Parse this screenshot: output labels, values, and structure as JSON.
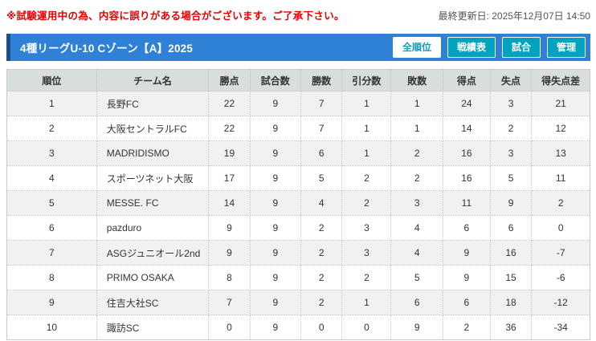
{
  "notice": {
    "text": "※試験運用中の為、内容に誤りがある場合がございます。ご了承下さい。",
    "color": "#e60000"
  },
  "updated": {
    "text": "最終更新日: 2025年12月07日 14:50"
  },
  "header": {
    "title": "4種リーグU-10 Cゾーン【A】2025",
    "bar_color": "#2e81d6",
    "bar_accent_color": "#1d4e8b",
    "button_color": "#00a2bd",
    "buttons": [
      {
        "label": "全順位",
        "active": true
      },
      {
        "label": "戦績表",
        "active": false
      },
      {
        "label": "試合",
        "active": false
      },
      {
        "label": "管理",
        "active": false
      }
    ]
  },
  "table": {
    "header_bg": "#d8dfda",
    "odd_row_bg": "#f1f1f1",
    "columns": [
      "順位",
      "チーム名",
      "勝点",
      "試合数",
      "勝数",
      "引分数",
      "敗数",
      "得点",
      "失点",
      "得失点差"
    ],
    "rows": [
      [
        "1",
        "長野FC",
        "22",
        "9",
        "7",
        "1",
        "1",
        "24",
        "3",
        "21"
      ],
      [
        "2",
        "大阪セントラルFC",
        "22",
        "9",
        "7",
        "1",
        "1",
        "14",
        "2",
        "12"
      ],
      [
        "3",
        "MADRIDISMO",
        "19",
        "9",
        "6",
        "1",
        "2",
        "16",
        "3",
        "13"
      ],
      [
        "4",
        "スポーツネット大阪",
        "17",
        "9",
        "5",
        "2",
        "2",
        "16",
        "5",
        "11"
      ],
      [
        "5",
        "MESSE. FC",
        "14",
        "9",
        "4",
        "2",
        "3",
        "11",
        "9",
        "2"
      ],
      [
        "6",
        "pazduro",
        "9",
        "9",
        "2",
        "3",
        "4",
        "6",
        "6",
        "0"
      ],
      [
        "7",
        "ASGジュニオール2nd",
        "9",
        "9",
        "2",
        "3",
        "4",
        "9",
        "16",
        "-7"
      ],
      [
        "8",
        "PRIMO OSAKA",
        "8",
        "9",
        "2",
        "2",
        "5",
        "9",
        "15",
        "-6"
      ],
      [
        "9",
        "住吉大社SC",
        "7",
        "9",
        "2",
        "1",
        "6",
        "6",
        "18",
        "-12"
      ],
      [
        "10",
        "諏訪SC",
        "0",
        "9",
        "0",
        "0",
        "9",
        "2",
        "36",
        "-34"
      ]
    ]
  }
}
